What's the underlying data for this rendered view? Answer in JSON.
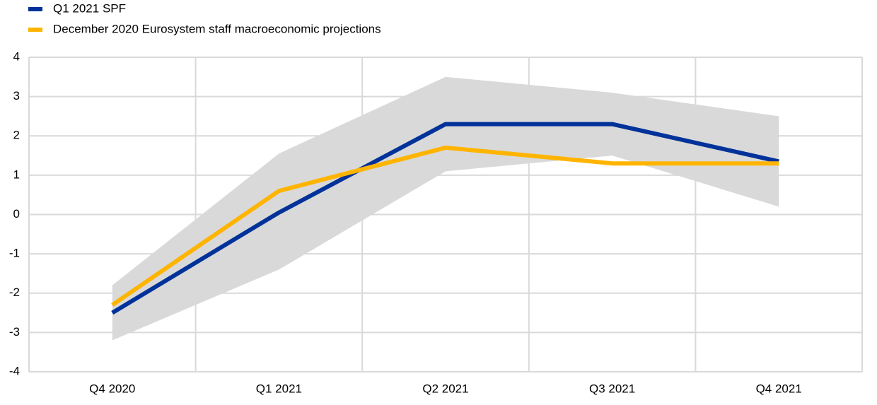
{
  "chart_data": {
    "type": "line",
    "categories": [
      "Q4 2020",
      "Q1 2021",
      "Q2 2021",
      "Q3 2021",
      "Q4 2021"
    ],
    "series": [
      {
        "name": "Q1 2021 SPF",
        "color": "#003299",
        "values": [
          -2.5,
          0.05,
          2.3,
          2.3,
          1.35
        ]
      },
      {
        "name": "December 2020 Eurosystem staff macroeconomic projections",
        "color": "#ffb400",
        "values": [
          -2.3,
          0.6,
          1.7,
          1.3,
          1.3
        ]
      }
    ],
    "band": {
      "color": "#d9d9d9",
      "upper": [
        -1.8,
        1.55,
        3.5,
        3.1,
        2.5
      ],
      "lower": [
        -3.2,
        -1.4,
        1.1,
        1.5,
        0.2
      ]
    },
    "ylim": [
      -4,
      4
    ],
    "yticks": [
      -4,
      -3,
      -2,
      -1,
      0,
      1,
      2,
      3,
      4
    ],
    "grid": true
  }
}
